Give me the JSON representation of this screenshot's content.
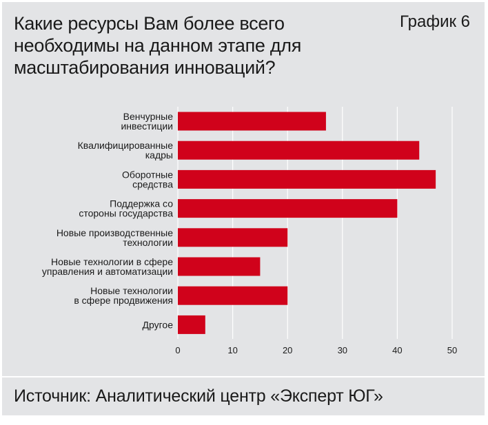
{
  "header": {
    "title_lines": [
      "Какие ресурсы Вам более всего",
      "необходимы на данном этапе для",
      "масштабирования инноваций?"
    ],
    "chart_number": "График 6"
  },
  "footer": {
    "source": "Источник: Аналитический центр «Эксперт ЮГ»"
  },
  "colors": {
    "bar": "#d0021b",
    "grid": "#ffffff",
    "background": "#e3e4e6"
  },
  "chart_data": {
    "type": "bar",
    "orientation": "horizontal",
    "title": "Какие ресурсы Вам более всего необходимы на данном этапе для масштабирования инноваций?",
    "categories": [
      [
        "Венчурные",
        "инвестиции"
      ],
      [
        "Квалифицированные",
        "кадры"
      ],
      [
        "Оборотные",
        "средства"
      ],
      [
        "Поддержка со",
        "стороны государства"
      ],
      [
        "Новые производственные",
        "технологии"
      ],
      [
        "Новые технологии в сфере",
        "управления и автоматизации"
      ],
      [
        "Новые технологии",
        "в сфере продвижения"
      ],
      [
        "Другое"
      ]
    ],
    "values": [
      27,
      44,
      47,
      40,
      20,
      15,
      20,
      5
    ],
    "xlim": [
      0,
      50
    ],
    "xticks": [
      0,
      10,
      20,
      30,
      40,
      50
    ],
    "grid": true
  }
}
